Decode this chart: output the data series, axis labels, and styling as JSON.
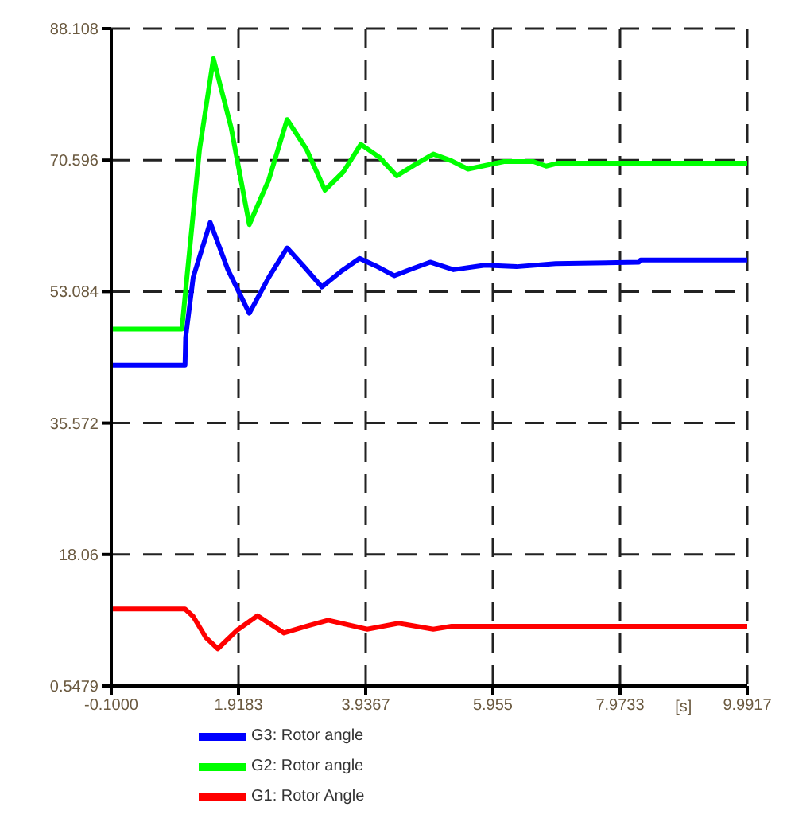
{
  "chart_data": {
    "type": "line",
    "xlabel": "[s]",
    "xlim": [
      -0.1,
      9.9917
    ],
    "xticks": [
      {
        "value": -0.1,
        "label": "-0.1000"
      },
      1.9183,
      3.9367,
      5.955,
      7.9733,
      9.9917
    ],
    "ylim": [
      0.5479,
      88.108
    ],
    "yticks": [
      0.5479,
      18.06,
      35.572,
      53.084,
      70.596,
      88.108
    ],
    "grid": true,
    "legend": "bottom",
    "marker": "none",
    "series": [
      {
        "name": "G3: Rotor angle",
        "color": "#0000ff",
        "x": [
          -0.1,
          1.07,
          1.08,
          1.2,
          1.47,
          1.75,
          2.09,
          2.4,
          2.69,
          2.95,
          3.24,
          3.55,
          3.84,
          4.1,
          4.39,
          4.7,
          4.96,
          5.33,
          5.83,
          6.33,
          6.95,
          8.27,
          8.3,
          9.9917
        ],
        "values": [
          43.3,
          43.3,
          47.0,
          55.0,
          62.3,
          56.0,
          50.2,
          55.0,
          58.9,
          56.5,
          53.7,
          55.8,
          57.5,
          56.5,
          55.2,
          56.2,
          57.0,
          56.0,
          56.6,
          56.4,
          56.8,
          57.0,
          57.3,
          57.3
        ]
      },
      {
        "name": "G2: Rotor angle",
        "color": "#00ff00",
        "x": [
          -0.1,
          1.02,
          1.1,
          1.3,
          1.52,
          1.8,
          2.09,
          2.4,
          2.69,
          3.0,
          3.29,
          3.58,
          3.86,
          4.15,
          4.43,
          4.72,
          5.01,
          5.3,
          5.56,
          6.13,
          6.6,
          6.8,
          7.0,
          9.9917
        ],
        "values": [
          48.1,
          48.1,
          55.0,
          72.0,
          84.1,
          75.0,
          62.0,
          68.0,
          76.0,
          72.0,
          66.6,
          69.0,
          72.7,
          71.0,
          68.5,
          70.0,
          71.4,
          70.5,
          69.4,
          70.4,
          70.4,
          69.8,
          70.2,
          70.2
        ]
      },
      {
        "name": "G1: Rotor Angle",
        "color": "#ff0000",
        "x": [
          -0.1,
          1.07,
          1.2,
          1.4,
          1.59,
          1.9,
          2.22,
          2.64,
          3.0,
          3.34,
          3.96,
          4.46,
          5.01,
          5.3,
          9.9917
        ],
        "values": [
          10.8,
          10.8,
          9.8,
          7.0,
          5.5,
          8.0,
          9.9,
          7.6,
          8.5,
          9.3,
          8.1,
          8.9,
          8.1,
          8.5,
          8.5
        ]
      }
    ]
  }
}
